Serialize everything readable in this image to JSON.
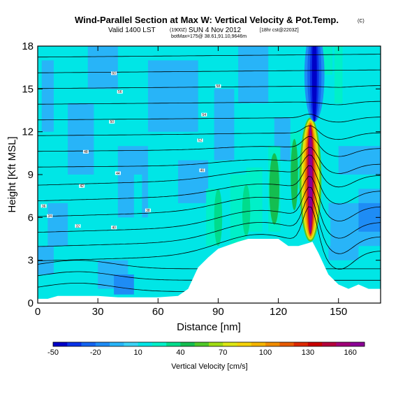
{
  "header": {
    "title": "Wind-Parallel Section at Max W: Vertical Velocity & Pot.Temp.",
    "copyright": "(C)",
    "subtitle_main": "Valid 1400 LST",
    "subtitle_utc": "(1900Z)",
    "subtitle_date": "SUN 4 Nov 2012",
    "subtitle_run": "[18hr cst@2203Z]",
    "subtitle_loc": "botMax=175@ 38.61,91.10,9646m"
  },
  "colorbar": {
    "label": "Vertical Velocity [cm/s]",
    "tick_labels": [
      "-50",
      "-20",
      "10",
      "40",
      "70",
      "100",
      "130",
      "160"
    ],
    "colors": [
      "#0000c8",
      "#0a32e6",
      "#1464f0",
      "#1e8cf5",
      "#28b4f8",
      "#3cd2f5",
      "#00e6e6",
      "#00f0c8",
      "#00dc8c",
      "#14be50",
      "#50c828",
      "#a0dc14",
      "#dce614",
      "#f5d20a",
      "#f5b400",
      "#f08c00",
      "#e65a00",
      "#dc2800",
      "#c80000",
      "#b4003c",
      "#a00078",
      "#8c0096"
    ],
    "colors_bound_min": -50,
    "colors_step": 10
  },
  "chart_data": {
    "type": "heatmap",
    "title": "Wind-Parallel Section at Max W: Vertical Velocity & Pot.Temp.",
    "xlabel": "Distance [nm]",
    "ylabel": "Height [Kft MSL]",
    "xlim": [
      0,
      171
    ],
    "ylim": [
      0,
      18
    ],
    "xticks": [
      0,
      30,
      60,
      90,
      120,
      150
    ],
    "yticks": [
      0,
      3,
      6,
      9,
      12,
      15,
      18
    ],
    "field": "vertical velocity [cm/s]",
    "max_updraft": 175,
    "terrain": {
      "x": [
        0,
        5,
        10,
        30,
        40,
        60,
        70,
        75,
        80,
        85,
        90,
        100,
        105,
        120,
        125,
        130,
        135,
        137,
        140,
        145,
        150,
        155,
        160,
        165,
        171
      ],
      "top_kft": [
        0.3,
        0.3,
        0.5,
        0.5,
        0.4,
        0.4,
        0.5,
        1.0,
        2.5,
        3.2,
        3.8,
        4.3,
        4.5,
        4.5,
        4.0,
        4.0,
        4.2,
        4.3,
        3.5,
        2.0,
        1.3,
        1.0,
        1.3,
        1.0,
        1.0
      ]
    },
    "updraft_core": {
      "x": 136,
      "ymin_kft": 4.3,
      "ymax_kft": 13
    },
    "downdraft_core": {
      "x": 137,
      "ymin_kft": 13,
      "ymax_kft": 18
    },
    "isentropes": {
      "unit": "K",
      "labels": [
        "32",
        "34",
        "36",
        "38",
        "40",
        "42",
        "44",
        "46",
        "48",
        "50",
        "52",
        "54",
        "56",
        "58",
        "60"
      ]
    }
  }
}
